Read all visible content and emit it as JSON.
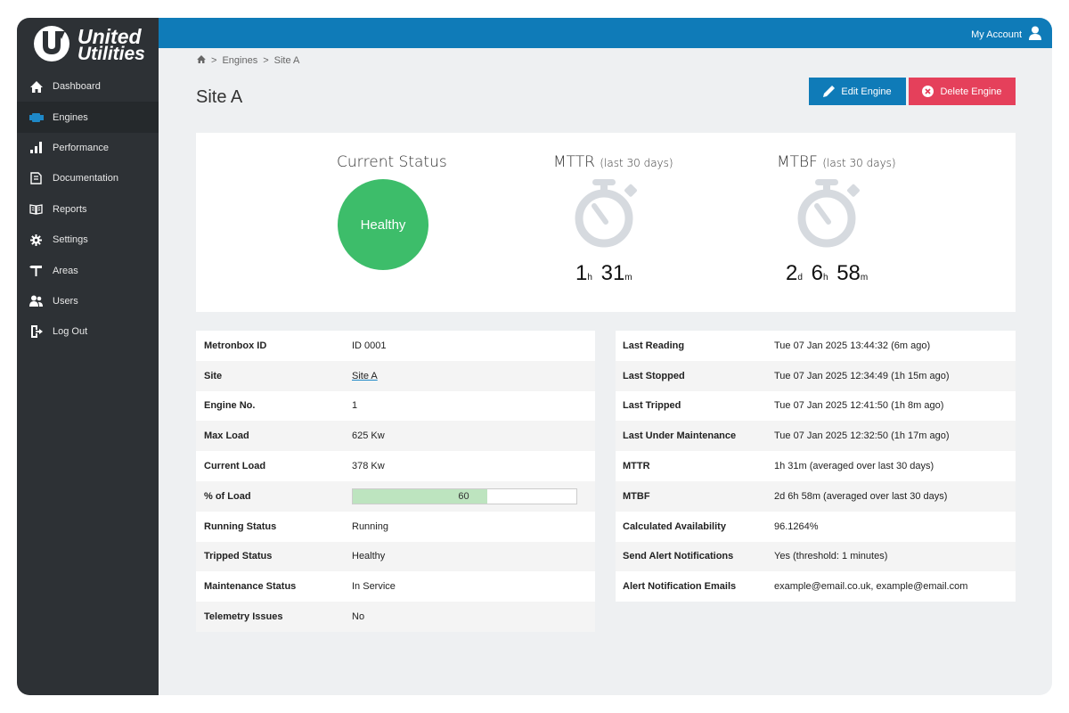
{
  "brand": {
    "line1": "United",
    "line2": "Utilities"
  },
  "account": {
    "label": "My Account",
    "icon": "user-icon"
  },
  "sidebar": {
    "items": [
      {
        "label": "Dashboard",
        "icon": "home-icon"
      },
      {
        "label": "Engines",
        "icon": "engine-icon",
        "active": true
      },
      {
        "label": "Performance",
        "icon": "bar-chart-icon"
      },
      {
        "label": "Documentation",
        "icon": "documentation-icon"
      },
      {
        "label": "Reports",
        "icon": "reports-icon"
      },
      {
        "label": "Settings",
        "icon": "gear-icon"
      },
      {
        "label": "Areas",
        "icon": "signpost-icon"
      },
      {
        "label": "Users",
        "icon": "users-icon"
      },
      {
        "label": "Log Out",
        "icon": "logout-icon"
      }
    ]
  },
  "breadcrumb": {
    "home_icon": "home-icon",
    "sep": ">",
    "items": [
      "Engines",
      "Site A"
    ]
  },
  "page": {
    "title": "Site A"
  },
  "buttons": {
    "edit": {
      "label": "Edit Engine",
      "icon": "pencil-icon"
    },
    "delete": {
      "label": "Delete Engine",
      "icon": "close-circle-icon"
    }
  },
  "status": {
    "current_title": "Current Status",
    "current_value": "Healthy",
    "mttr_title": "MTTR",
    "mttr_sub": "(last 30 days)",
    "mttr_value": {
      "h": "1",
      "h_unit": "h",
      "m": "31",
      "m_unit": "m"
    },
    "mtbf_title": "MTBF",
    "mtbf_sub": "(last 30 days)",
    "mtbf_value": {
      "d": "2",
      "d_unit": "d",
      "h": "6",
      "h_unit": "h",
      "m": "58",
      "m_unit": "m"
    }
  },
  "details_left": [
    {
      "key": "Metronbox ID",
      "value": "ID 0001"
    },
    {
      "key": "Site",
      "value": "Site A",
      "link": true
    },
    {
      "key": "Engine No.",
      "value": "1"
    },
    {
      "key": "Max Load",
      "value": "625 Kw"
    },
    {
      "key": "Current Load",
      "value": "378 Kw"
    },
    {
      "key": "% of Load",
      "value": "60",
      "progress": 60
    },
    {
      "key": "Running Status",
      "value": "Running"
    },
    {
      "key": "Tripped Status",
      "value": "Healthy"
    },
    {
      "key": "Maintenance Status",
      "value": "In Service"
    },
    {
      "key": "Telemetry Issues",
      "value": "No"
    }
  ],
  "details_right": [
    {
      "key": "Last Reading",
      "value": "Tue 07 Jan 2025 13:44:32 (6m ago)"
    },
    {
      "key": "Last Stopped",
      "value": "Tue 07 Jan 2025 12:34:49 (1h 15m ago)"
    },
    {
      "key": "Last Tripped",
      "value": "Tue 07 Jan 2025 12:41:50 (1h 8m ago)"
    },
    {
      "key": "Last Under Maintenance",
      "value": "Tue 07 Jan 2025 12:32:50 (1h 17m ago)"
    },
    {
      "key": "MTTR",
      "value": "1h 31m (averaged over last 30 days)"
    },
    {
      "key": "MTBF",
      "value": "2d 6h 58m (averaged over last 30 days)"
    },
    {
      "key": "Calculated Availability",
      "value": "96.1264%"
    },
    {
      "key": "Send Alert Notifications",
      "value": "Yes (threshold: 1 minutes)"
    },
    {
      "key": "Alert Notification Emails",
      "value": "example@email.co.uk, example@email.com"
    }
  ],
  "colors": {
    "sidebar_bg": "#2d3135",
    "topbar": "#0f7bb8",
    "edit_button": "#0f7bb8",
    "delete_button": "#e5405b",
    "healthy": "#3dbd6a",
    "progress_fill": "#bde4bf",
    "active_icon": "#1e88c7"
  }
}
